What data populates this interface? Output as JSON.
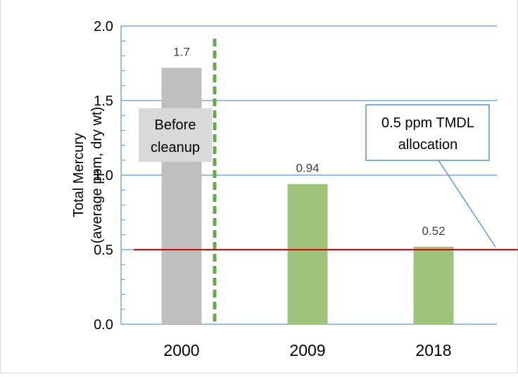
{
  "chart_data": {
    "type": "bar",
    "categories": [
      "2000",
      "2009",
      "2018"
    ],
    "values": [
      1.72,
      0.94,
      0.52
    ],
    "data_labels": [
      "1.7",
      "0.94",
      "0.52"
    ],
    "bar_colors": [
      "#bfbfbf",
      "#9dc47a",
      "#9dc47a"
    ],
    "ylabel_lines": [
      "Total Mercury",
      "(average ppm, dry wt)"
    ],
    "ylim": [
      0.0,
      2.0
    ],
    "yticks": [
      {
        "value": 0.0,
        "label": "0.0"
      },
      {
        "value": 0.5,
        "label": "0.5"
      },
      {
        "value": 1.0,
        "label": "1.0"
      },
      {
        "value": 1.5,
        "label": "1.5"
      },
      {
        "value": 2.0,
        "label": "2.0"
      }
    ],
    "grid": true,
    "gridline_color": "#5b9bd5",
    "reference_line": {
      "value": 0.5,
      "color": "#e00000"
    },
    "divider": {
      "between": [
        "2000",
        "2009"
      ],
      "style": "dashed",
      "color": "#6aa84f"
    },
    "annotations": [
      {
        "lines": [
          "Before",
          "cleanup"
        ],
        "target": "2000"
      },
      {
        "lines": [
          "0.5 ppm TMDL",
          "allocation"
        ],
        "target": "reference_line",
        "border_color": "#5b9bd5"
      }
    ]
  }
}
